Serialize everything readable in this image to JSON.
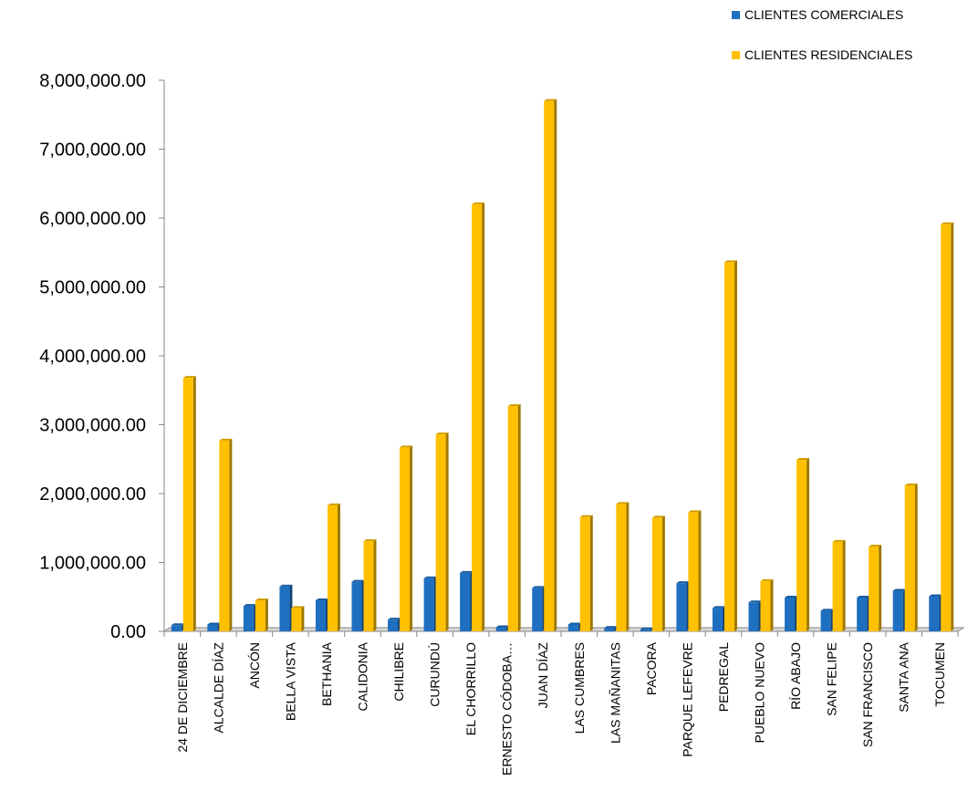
{
  "chart_data": {
    "type": "bar",
    "ylim": [
      0,
      8000000
    ],
    "y_ticks": [
      "0.00",
      "1,000,000.00",
      "2,000,000.00",
      "3,000,000.00",
      "4,000,000.00",
      "5,000,000.00",
      "6,000,000.00",
      "7,000,000.00",
      "8,000,000.00"
    ],
    "categories": [
      "24 DE DICIEMBRE",
      "ALCALDE DÍAZ",
      "ANCÓN",
      "BELLA VISTA",
      "BETHANIA",
      "CALIDONIA",
      "CHILIBRE",
      "CURUNDÚ",
      "EL CHORRILLO",
      "ERNESTO CÓDOBA…",
      "JUAN DÍAZ",
      "LAS CUMBRES",
      "LAS MAÑANITAS",
      "PACORA",
      "PARQUE LEFEVRE",
      "PEDREGAL",
      "PUEBLO NUEVO",
      "RÍO ABAJO",
      "SAN FELIPE",
      "SAN FRANCISCO",
      "SANTA ANA",
      "TOCUMEN"
    ],
    "series": [
      {
        "name": "CLIENTES COMERCIALES",
        "color": "#1f6fc0",
        "values": [
          90000,
          100000,
          370000,
          650000,
          450000,
          720000,
          170000,
          770000,
          850000,
          60000,
          630000,
          100000,
          50000,
          30000,
          700000,
          340000,
          420000,
          490000,
          300000,
          490000,
          590000,
          510000
        ]
      },
      {
        "name": "CLIENTES RESIDENCIALES",
        "color": "#ffc000",
        "values": [
          3680000,
          2770000,
          450000,
          340000,
          1830000,
          1310000,
          2670000,
          2860000,
          6200000,
          3270000,
          7700000,
          1660000,
          1850000,
          1650000,
          1730000,
          5360000,
          730000,
          2490000,
          1300000,
          1230000,
          2120000,
          5910000
        ]
      }
    ],
    "legend_position": "top-right",
    "grid": false
  }
}
